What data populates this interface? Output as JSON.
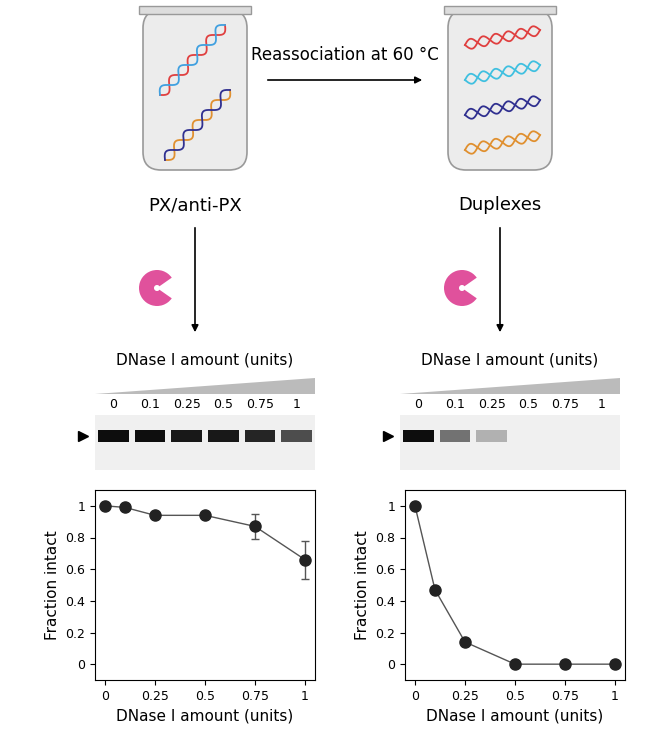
{
  "diagram": {
    "step": "Reassociation at 60 °C",
    "left_tube": "PX/anti-PX",
    "right_tube": "Duplexes",
    "gel_header": "DNase I amount (units)"
  },
  "chart_data": [
    {
      "type": "line",
      "x": [
        0,
        0.1,
        0.25,
        0.5,
        0.75,
        1
      ],
      "values": [
        1,
        0.99,
        0.94,
        0.94,
        0.87,
        0.66
      ],
      "error": [
        0,
        0,
        0,
        0,
        0.08,
        0.12
      ],
      "x_label": "DNase I amount (units)",
      "y_label": "Fraction intact",
      "xlim": [
        -0.05,
        1.05
      ],
      "xticks": [
        0,
        0.25,
        0.5,
        0.75,
        1
      ],
      "ylim": [
        -0.1,
        1.1
      ],
      "yticks": [
        0,
        0.2,
        0.4,
        0.6,
        0.8,
        1
      ],
      "color": "#555555",
      "marker": "o",
      "grid": false
    },
    {
      "type": "line",
      "x": [
        0,
        0.1,
        0.25,
        0.5,
        0.75,
        1
      ],
      "values": [
        1,
        0.47,
        0.14,
        0,
        0,
        0
      ],
      "x_label": "DNase I amount (units)",
      "y_label": "Fraction intact",
      "xlim": [
        -0.05,
        1.05
      ],
      "xticks": [
        0,
        0.25,
        0.5,
        0.75,
        1
      ],
      "ylim": [
        -0.1,
        1.1
      ],
      "yticks": [
        0,
        0.2,
        0.4,
        0.6,
        0.8,
        1
      ],
      "color": "#555555",
      "marker": "o",
      "grid": false
    }
  ]
}
